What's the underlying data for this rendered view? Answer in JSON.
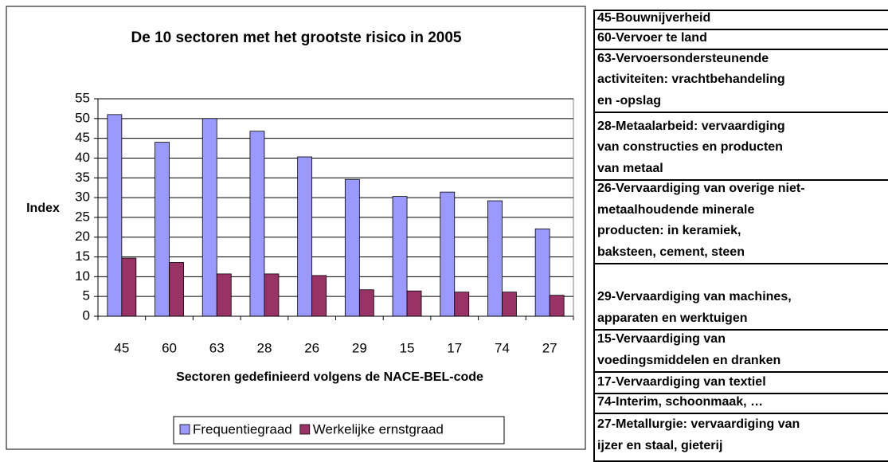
{
  "chart_data": {
    "type": "bar",
    "title": "De 10 sectoren met het grootste risico in 2005",
    "y_label": "Index",
    "x_label": "Sectoren gedefinieerd volgens de NACE-BEL-code",
    "categories": [
      "45",
      "60",
      "63",
      "28",
      "26",
      "29",
      "15",
      "17",
      "74",
      "27"
    ],
    "series": [
      {
        "name": "Frequentiegraad",
        "color": "#9999ff",
        "values": [
          51,
          44,
          50,
          46.8,
          40.3,
          34.6,
          30.3,
          31.4,
          29.2,
          22.1
        ]
      },
      {
        "name": "Werkelijke ernstgraad",
        "color": "#993366",
        "values": [
          14.7,
          13.6,
          10.7,
          10.7,
          10.3,
          6.7,
          6.4,
          6.1,
          6.1,
          5.3
        ]
      }
    ],
    "ylim": [
      0,
      55
    ],
    "yticks": [
      0,
      5,
      10,
      15,
      20,
      25,
      30,
      35,
      40,
      45,
      50,
      55
    ],
    "grid": true,
    "legend": "bottom"
  },
  "table": {
    "rows": [
      [
        "45-Bouwnijverheid"
      ],
      [
        "60-Vervoer te land"
      ],
      [
        "63-Vervoersondersteunende",
        "activiteiten: vrachtbehandeling",
        "en -opslag"
      ],
      [
        "28-Metaalarbeid: vervaardiging",
        "van constructies en producten",
        "van metaal"
      ],
      [
        "26-Vervaardiging van overige niet-",
        "metaalhoudende minerale",
        "producten: in keramiek,",
        "baksteen, cement, steen"
      ],
      [
        "29-Vervaardiging van machines,",
        "apparaten en werktuigen"
      ],
      [
        "15-Vervaardiging van",
        "voedingsmiddelen en dranken"
      ],
      [
        "17-Vervaardiging van textiel"
      ],
      [
        "74-Interim, schoonmaak, …"
      ],
      [
        "27-Metallurgie: vervaardiging van",
        "ijzer en staal, gieterij"
      ]
    ]
  }
}
